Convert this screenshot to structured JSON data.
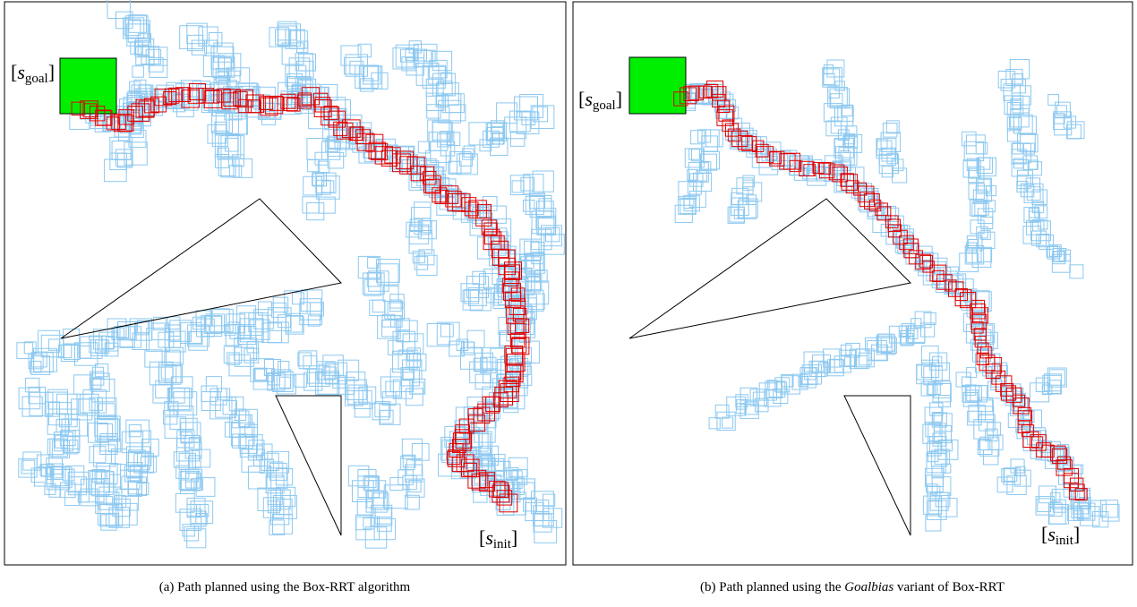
{
  "panels": [
    {
      "goal_label": {
        "open": "[",
        "symbol": "s",
        "subscript": "goal",
        "close": "]"
      },
      "init_label": {
        "open": "[",
        "symbol": "s",
        "subscript": "init",
        "close": "]"
      },
      "caption": {
        "label": "(a)",
        "before": "Path planned using the Box-RRT algorithm"
      }
    },
    {
      "goal_label": {
        "open": "[",
        "symbol": "s",
        "subscript": "goal",
        "close": "]"
      },
      "init_label": {
        "open": "[",
        "symbol": "s",
        "subscript": "init",
        "close": "]"
      },
      "caption": {
        "label": "(b)",
        "before": "Path planned using the",
        "emphasis": "Goalbias",
        "after": "variant of Box-RRT"
      }
    }
  ]
}
